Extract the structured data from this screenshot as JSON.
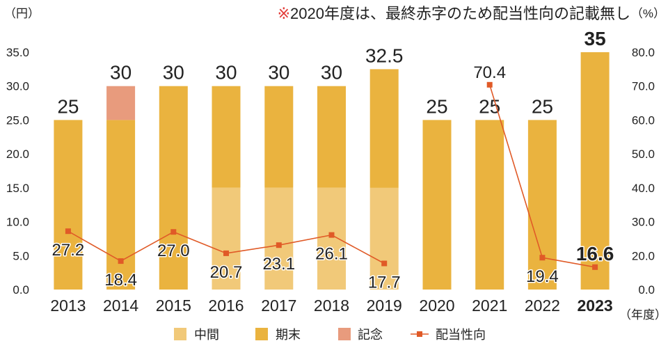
{
  "chart_data": {
    "type": "bar",
    "categories": [
      "2013",
      "2014",
      "2015",
      "2016",
      "2017",
      "2018",
      "2019",
      "2020",
      "2021",
      "2022",
      "2023"
    ],
    "series": [
      {
        "name": "中間",
        "type": "bar",
        "axis": "left",
        "color": "#F1C979",
        "values": [
          null,
          null,
          null,
          15,
          15,
          15,
          15,
          null,
          null,
          null,
          null
        ]
      },
      {
        "name": "期末",
        "type": "bar",
        "axis": "left",
        "color": "#EAB33F",
        "values": [
          25,
          25,
          30,
          15,
          15,
          15,
          17.5,
          25,
          25,
          25,
          35
        ]
      },
      {
        "name": "記念",
        "type": "bar",
        "axis": "left",
        "color": "#E89B7D",
        "values": [
          null,
          5,
          null,
          null,
          null,
          null,
          null,
          null,
          null,
          null,
          null
        ]
      },
      {
        "name": "配当性向",
        "type": "line",
        "axis": "right",
        "color": "#E05A27",
        "values": [
          27.2,
          18.4,
          27.0,
          20.7,
          23.1,
          26.1,
          17.7,
          null,
          70.4,
          19.4,
          16.6
        ]
      }
    ],
    "bar_total_labels": [
      "25",
      "30",
      "30",
      "30",
      "30",
      "30",
      "32.5",
      "25",
      "25",
      "25",
      "35"
    ],
    "line_labels": [
      "27.2",
      "18.4",
      "27.0",
      "20.7",
      "23.1",
      "26.1",
      "17.7",
      null,
      "70.4",
      "19.4",
      "16.6"
    ],
    "y_left": {
      "unit": "（円）",
      "ylim": [
        0,
        35
      ],
      "ticks": [
        "0.0",
        "5.0",
        "10.0",
        "15.0",
        "20.0",
        "25.0",
        "30.0",
        "35.0"
      ]
    },
    "y_right": {
      "unit": "（%）",
      "ylim": [
        0,
        80
      ],
      "ticks": [
        "0.0",
        "20.0",
        "30.0",
        "40.0",
        "50.0",
        "60.0",
        "70.0",
        "80.0"
      ]
    },
    "x_unit": "（年度）",
    "note": {
      "mark": "※",
      "mark_color": "#E33B37",
      "text": "2020年度は、最終赤字のため配当性向の記載無し"
    },
    "highlight_category": "2023",
    "legend_position": "bottom",
    "grid": false
  }
}
